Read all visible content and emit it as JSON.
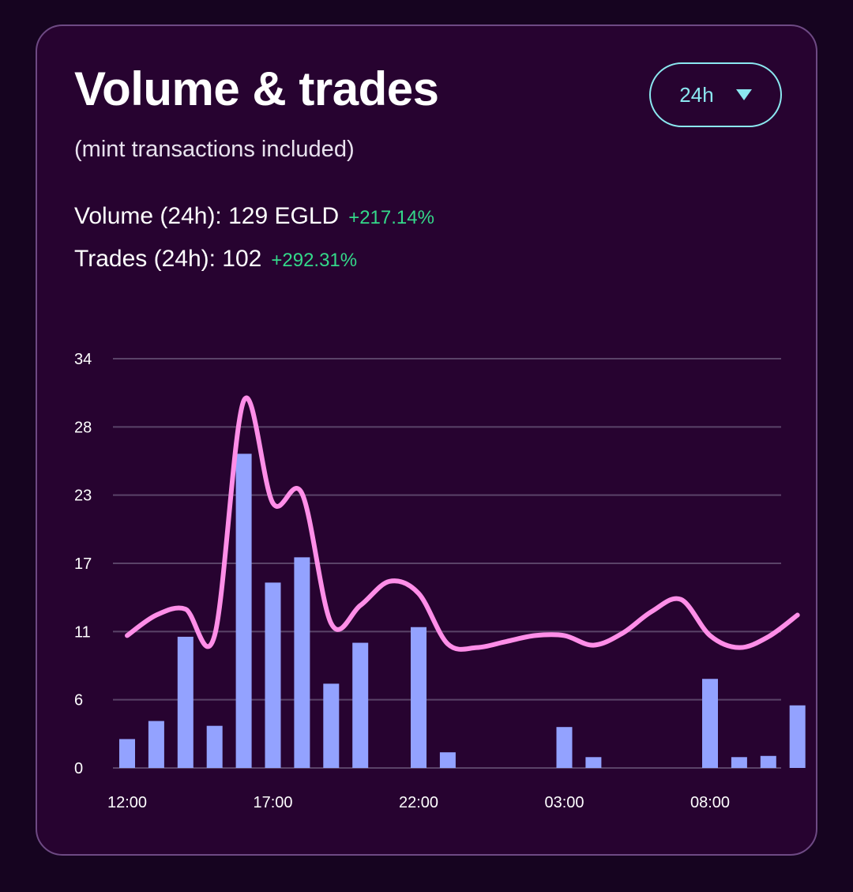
{
  "card": {
    "title": "Volume & trades",
    "subtitle": "(mint transactions included)"
  },
  "range_selector": {
    "selected": "24h"
  },
  "stats": {
    "volume_label": "Volume (24h): 129 EGLD",
    "volume_change": "+217.14%",
    "trades_label": "Trades (24h): 102",
    "trades_change": "+292.31%"
  },
  "colors": {
    "background": "#160420",
    "card": "#270330",
    "accent": "#8be8f0",
    "positive": "#34d98a",
    "bars": "#93a2ff",
    "line": "#ff8ee8",
    "grid": "#5a4368"
  },
  "chart_data": {
    "type": "bar",
    "title": "Volume & trades",
    "xlabel": "",
    "ylabel": "",
    "ylim": [
      0,
      34
    ],
    "y_ticks": [
      "0",
      "6",
      "11",
      "17",
      "23",
      "28",
      "34"
    ],
    "y_tick_values": [
      0,
      5.67,
      11.33,
      17,
      22.67,
      28.33,
      34
    ],
    "x_tick_labels": [
      {
        "label": "12:00",
        "index": 0
      },
      {
        "label": "17:00",
        "index": 5
      },
      {
        "label": "22:00",
        "index": 10
      },
      {
        "label": "03:00",
        "index": 15
      },
      {
        "label": "08:00",
        "index": 20
      }
    ],
    "grid": true,
    "series": [
      {
        "name": "Trades",
        "type": "bar",
        "values": [
          2.4,
          3.9,
          10.9,
          3.5,
          26.1,
          15.4,
          17.5,
          7.0,
          10.4,
          0,
          11.7,
          1.3,
          0,
          0,
          0,
          3.4,
          0.9,
          0,
          0,
          0,
          7.4,
          0.9,
          1.0,
          5.2
        ]
      },
      {
        "name": "Volume",
        "type": "line",
        "values": [
          11.0,
          12.7,
          13.2,
          11.0,
          30.5,
          22.0,
          22.8,
          12.0,
          13.5,
          15.5,
          14.5,
          10.3,
          10.0,
          10.5,
          11.0,
          11.0,
          10.2,
          11.2,
          13.0,
          14.0,
          11.0,
          10.0,
          10.9,
          12.7
        ]
      }
    ]
  }
}
